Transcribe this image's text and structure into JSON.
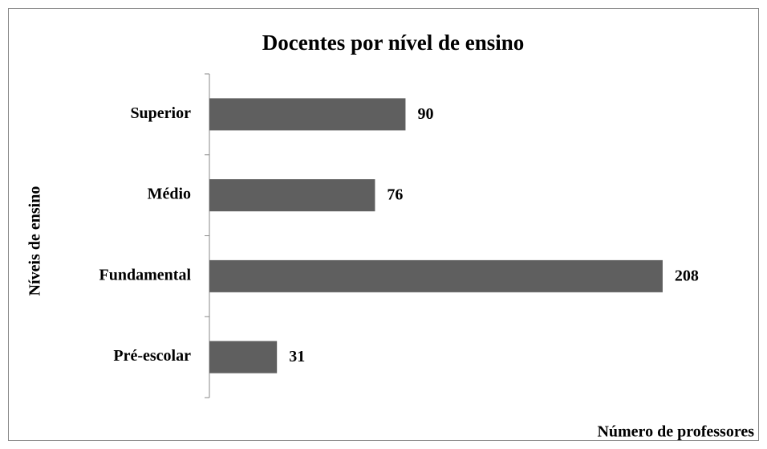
{
  "chart_data": {
    "type": "hbar",
    "title": "Docentes por nível de ensino",
    "x_label": "Número de professores",
    "y_label": "Níveis de ensino",
    "categories": [
      "Superior",
      "Médio",
      "Fundamental",
      "Pré-escolar"
    ],
    "values": [
      90,
      76,
      208,
      31
    ],
    "color": "#5f5f5f",
    "xlim": [
      0,
      250
    ]
  }
}
